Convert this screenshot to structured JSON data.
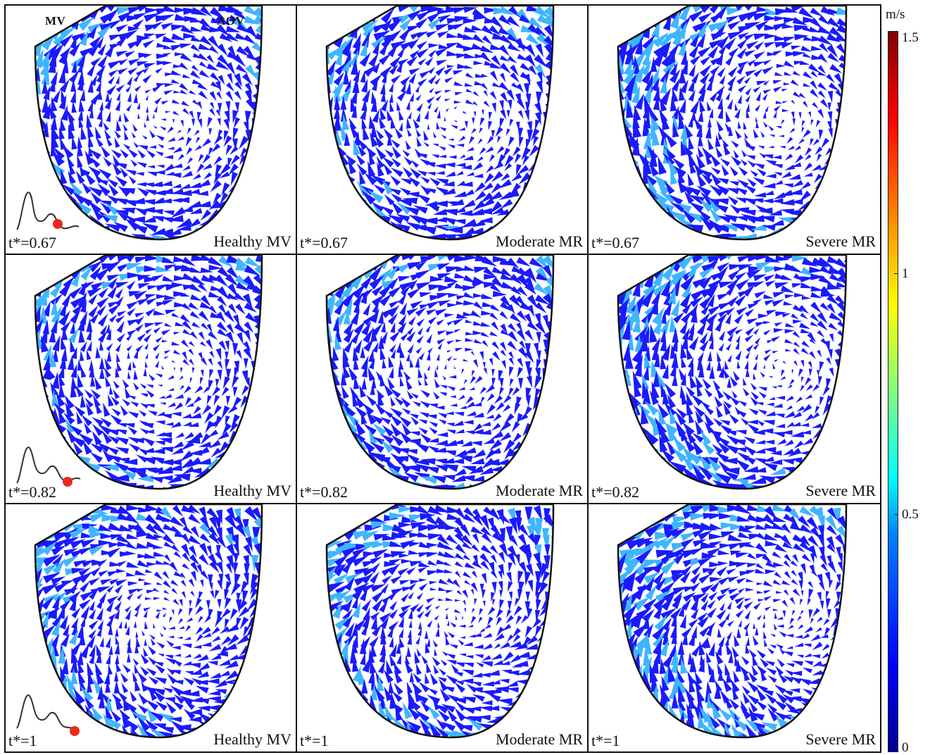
{
  "header": {
    "mv_label": "MV",
    "aov_label": "AOV"
  },
  "rows": [
    {
      "time_label": "t*=0.67",
      "phase": 0.67
    },
    {
      "time_label": "t*=0.82",
      "phase": 0.82
    },
    {
      "time_label": "t*=1",
      "phase": 1.0
    }
  ],
  "columns": [
    {
      "condition_label": "Healthy MV"
    },
    {
      "condition_label": "Moderate MR"
    },
    {
      "condition_label": "Severe MR"
    }
  ],
  "colorbar": {
    "unit": "m/s",
    "ticks": [
      "1.5",
      "1",
      "0.5",
      "0"
    ],
    "range": [
      0,
      1.5
    ],
    "colormap": [
      "#00008f",
      "#0000ff",
      "#0080ff",
      "#00ffff",
      "#80ff80",
      "#ffff00",
      "#ff8000",
      "#ff0000",
      "#800000"
    ]
  },
  "colors": {
    "vector_base": "#1a1aff",
    "vector_fast": "#3fb6ff",
    "outline": "#111111",
    "marker": "#e8291c"
  }
}
